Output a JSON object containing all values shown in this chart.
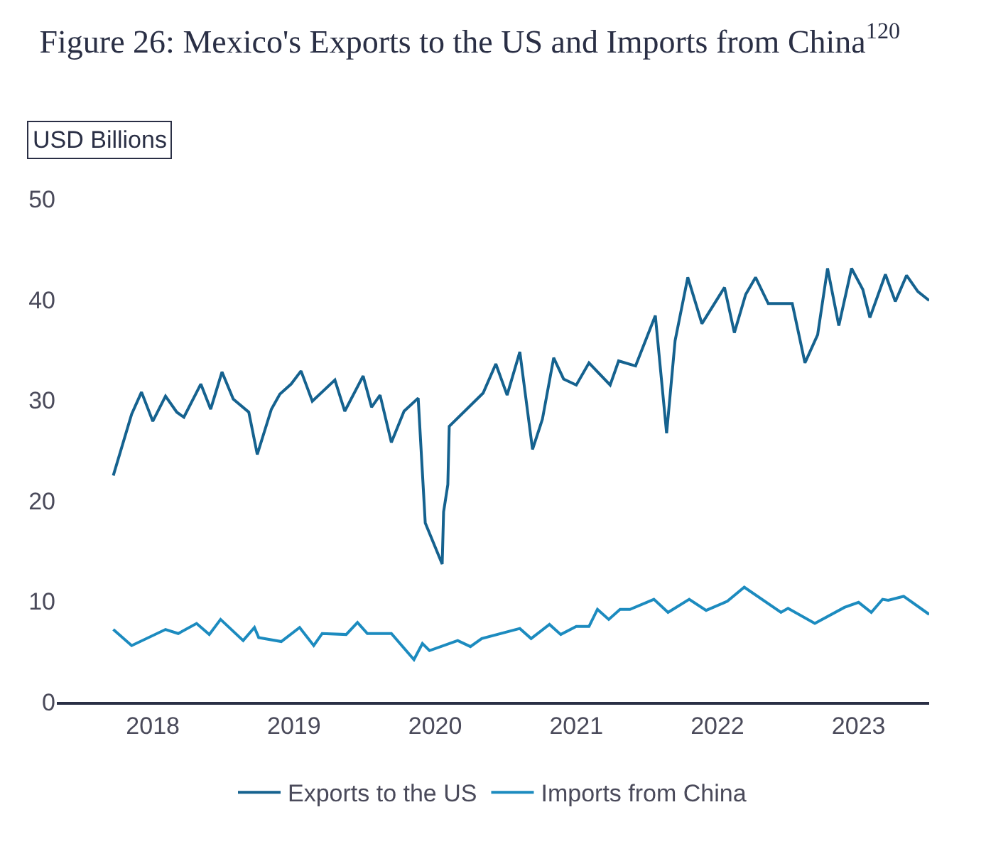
{
  "chart_data": {
    "type": "line",
    "title": "Figure 26: Mexico's Exports to the US and Imports from China$^{120}$",
    "ylabel": "USD Billions",
    "xlim": [
      2017.82,
      2024.0
    ],
    "xticks": [
      {
        "value": 2018.5,
        "label": "2018"
      },
      {
        "value": 2019.5,
        "label": "2019"
      },
      {
        "value": 2020.5,
        "label": "2020"
      },
      {
        "value": 2021.5,
        "label": "2021"
      },
      {
        "value": 2022.5,
        "label": "2022"
      },
      {
        "value": 2023.5,
        "label": "2023"
      }
    ],
    "ylim": [
      0,
      50
    ],
    "yticks": [
      0,
      10,
      20,
      30,
      40,
      50
    ],
    "legend": "bottom",
    "marker": "none",
    "line_style": "solid",
    "series": [
      {
        "name": "Exports to the US",
        "color": "#15628f",
        "x": [
          2018.22,
          2018.35,
          2018.42,
          2018.5,
          2018.59,
          2018.67,
          2018.72,
          2018.84,
          2018.91,
          2018.99,
          2019.07,
          2019.18,
          2019.24,
          2019.34,
          2019.4,
          2019.48,
          2019.55,
          2019.63,
          2019.79,
          2019.86,
          2019.99,
          2020.05,
          2020.11,
          2020.19,
          2020.28,
          2020.38,
          2020.43,
          2020.55,
          2020.56,
          2020.59,
          2020.6,
          2020.84,
          2020.93,
          2021.01,
          2021.1,
          2021.19,
          2021.26,
          2021.34,
          2021.41,
          2021.5,
          2021.59,
          2021.74,
          2021.8,
          2021.92,
          2022.06,
          2022.14,
          2022.2,
          2022.29,
          2022.39,
          2022.55,
          2022.62,
          2022.7,
          2022.77,
          2022.86,
          2023.03,
          2023.12,
          2023.21,
          2023.28,
          2023.36,
          2023.45,
          2023.53,
          2023.58,
          2023.69,
          2023.76,
          2023.84,
          2023.92,
          2024.0
        ],
        "values": [
          22.5,
          28.6,
          30.8,
          27.9,
          30.4,
          28.8,
          28.3,
          31.6,
          29.1,
          32.8,
          30.1,
          28.8,
          24.6,
          29.1,
          30.6,
          31.6,
          32.9,
          29.9,
          32.0,
          28.9,
          32.4,
          29.3,
          30.5,
          25.8,
          28.9,
          30.2,
          17.8,
          13.7,
          18.9,
          21.6,
          27.4,
          30.7,
          33.6,
          30.5,
          34.8,
          25.1,
          28.1,
          34.2,
          32.1,
          31.5,
          33.7,
          31.5,
          33.9,
          33.4,
          38.4,
          26.7,
          35.9,
          42.2,
          37.6,
          41.2,
          36.7,
          40.5,
          42.2,
          39.6,
          39.6,
          33.7,
          36.5,
          43.1,
          37.4,
          43.1,
          41.0,
          38.2,
          42.5,
          39.8,
          42.4,
          40.8,
          39.9
        ]
      },
      {
        "name": "Imports from China",
        "color": "#1c8bbf",
        "x": [
          2018.22,
          2018.35,
          2018.59,
          2018.68,
          2018.81,
          2018.9,
          2018.98,
          2019.14,
          2019.22,
          2019.25,
          2019.41,
          2019.54,
          2019.64,
          2019.7,
          2019.87,
          2019.95,
          2020.02,
          2020.19,
          2020.35,
          2020.41,
          2020.46,
          2020.66,
          2020.75,
          2020.83,
          2021.1,
          2021.18,
          2021.31,
          2021.39,
          2021.5,
          2021.59,
          2021.65,
          2021.73,
          2021.81,
          2021.88,
          2022.05,
          2022.15,
          2022.3,
          2022.42,
          2022.57,
          2022.69,
          2022.95,
          2023.0,
          2023.19,
          2023.4,
          2023.5,
          2023.59,
          2023.67,
          2023.71,
          2023.82,
          2024.0
        ],
        "values": [
          7.2,
          5.6,
          7.2,
          6.8,
          7.8,
          6.7,
          8.2,
          6.1,
          7.4,
          6.4,
          6.0,
          7.4,
          5.6,
          6.8,
          6.7,
          7.9,
          6.8,
          6.8,
          4.2,
          5.8,
          5.1,
          6.1,
          5.5,
          6.3,
          7.3,
          6.3,
          7.7,
          6.7,
          7.5,
          7.5,
          9.2,
          8.2,
          9.2,
          9.2,
          10.2,
          8.9,
          10.2,
          9.1,
          10.0,
          11.4,
          8.9,
          9.3,
          7.8,
          9.4,
          9.9,
          8.9,
          10.2,
          10.1,
          10.5,
          8.7
        ]
      }
    ]
  }
}
